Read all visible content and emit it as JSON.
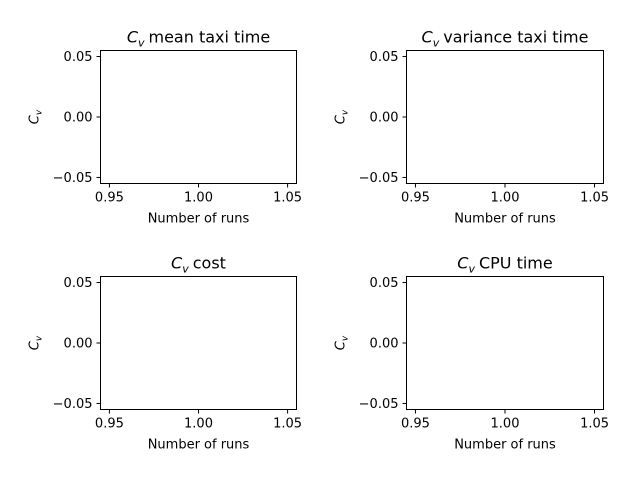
{
  "chart_data": [
    {
      "type": "line",
      "title_symbol": "C",
      "title_sub": "v",
      "title_text": "mean taxi time",
      "xlabel": "Number of runs",
      "ylabel_symbol": "C",
      "ylabel_sub": "v",
      "xlim": [
        0.945,
        1.055
      ],
      "ylim": [
        -0.055,
        0.055
      ],
      "xticks": [
        "0.95",
        "1.00",
        "1.05"
      ],
      "yticks": [
        "0.05",
        "0.00",
        "−0.05"
      ],
      "series": [],
      "grid": false
    },
    {
      "type": "line",
      "title_symbol": "C",
      "title_sub": "v",
      "title_text": "variance taxi time",
      "xlabel": "Number of runs",
      "ylabel_symbol": "C",
      "ylabel_sub": "v",
      "xlim": [
        0.945,
        1.055
      ],
      "ylim": [
        -0.055,
        0.055
      ],
      "xticks": [
        "0.95",
        "1.00",
        "1.05"
      ],
      "yticks": [
        "0.05",
        "0.00",
        "−0.05"
      ],
      "series": [],
      "grid": false
    },
    {
      "type": "line",
      "title_symbol": "C",
      "title_sub": "v",
      "title_text": "cost",
      "xlabel": "Number of runs",
      "ylabel_symbol": "C",
      "ylabel_sub": "v",
      "xlim": [
        0.945,
        1.055
      ],
      "ylim": [
        -0.055,
        0.055
      ],
      "xticks": [
        "0.95",
        "1.00",
        "1.05"
      ],
      "yticks": [
        "0.05",
        "0.00",
        "−0.05"
      ],
      "series": [],
      "grid": false
    },
    {
      "type": "line",
      "title_symbol": "C",
      "title_sub": "v",
      "title_text": "CPU time",
      "xlabel": "Number of runs",
      "ylabel_symbol": "C",
      "ylabel_sub": "v",
      "xlim": [
        0.945,
        1.055
      ],
      "ylim": [
        -0.055,
        0.055
      ],
      "xticks": [
        "0.95",
        "1.00",
        "1.05"
      ],
      "yticks": [
        "0.05",
        "0.00",
        "−0.05"
      ],
      "series": [],
      "grid": false
    }
  ]
}
